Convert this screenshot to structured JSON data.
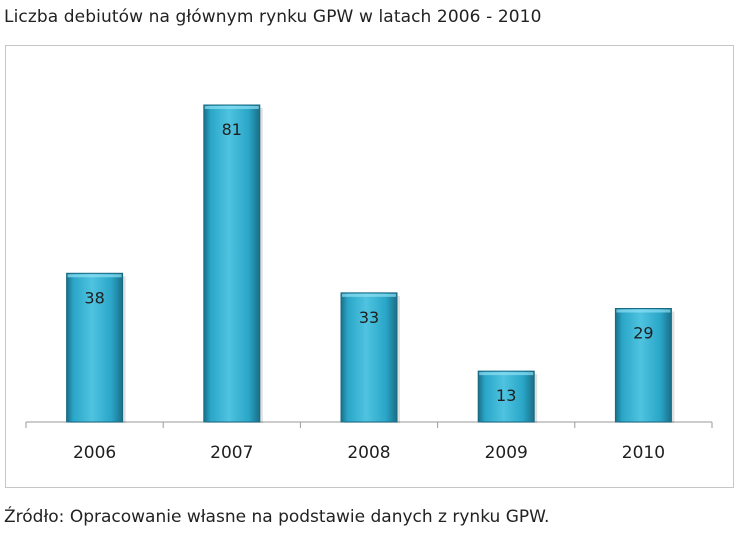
{
  "title": "Liczba debiutów na głównym rynku GPW w latach 2006 - 2010",
  "source": "Źródło: Opracowanie własne na podstawie danych z rynku GPW.",
  "colors": {
    "bar_light": "#4fc3e0",
    "bar_mid": "#2aa6c8",
    "bar_dark": "#1a6f88",
    "axis": "#9a9a9a",
    "label": "#1f1f1f"
  },
  "chart_data": {
    "type": "bar",
    "title": "Liczba debiutów na głównym rynku GPW w latach 2006 - 2010",
    "categories": [
      "2006",
      "2007",
      "2008",
      "2009",
      "2010"
    ],
    "values": [
      38,
      81,
      33,
      13,
      29
    ],
    "xlabel": "",
    "ylabel": "",
    "ylim": [
      0,
      81
    ],
    "grid": false,
    "legend": "none",
    "data_labels": true
  }
}
